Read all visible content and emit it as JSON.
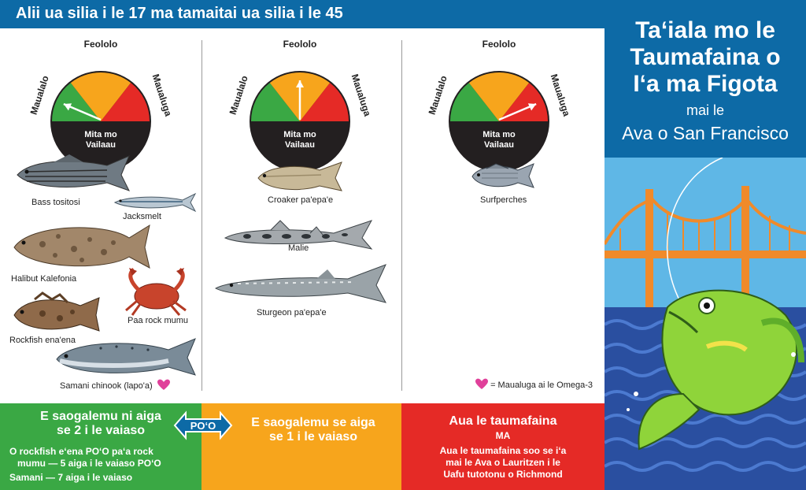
{
  "header": {
    "title": "Alii ua silia i le 17 ma tamaitai ua silia i le 45"
  },
  "panel": {
    "title_line1": "Ta‘iala mo le",
    "title_line2": "Taumafaina o",
    "title_line3": "I‘a ma Figota",
    "subtitle_small": "mai le",
    "subtitle_big": "Ava o San Francisco"
  },
  "gauge": {
    "label_left": "Maualalo",
    "label_top": "Feololo",
    "label_right": "Maualuga",
    "center_line1": "Mita mo",
    "center_line2": "Vailaau",
    "needles": [
      {
        "level": "low"
      },
      {
        "level": "medium"
      },
      {
        "level": "high"
      }
    ],
    "colors": {
      "green": "#3aa844",
      "orange": "#f7a51c",
      "red": "#e52a26",
      "black": "#231f20"
    }
  },
  "columns": [
    {
      "fish": [
        {
          "name": "Bass tositosi"
        },
        {
          "name": "Jacksmelt"
        },
        {
          "name": "Halibut Kalefonia"
        },
        {
          "name": "Paa rock mumu"
        },
        {
          "name": "Rockfish ena'ena"
        },
        {
          "name": "Samani chinook (lapo'a)"
        }
      ]
    },
    {
      "fish": [
        {
          "name": "Croaker pa'epa'e"
        },
        {
          "name": "Malie"
        },
        {
          "name": "Sturgeon pa'epa'e"
        }
      ]
    },
    {
      "fish": [
        {
          "name": "Surfperches"
        }
      ]
    }
  ],
  "legend": {
    "omega": "= Maualuga ai le Omega-3",
    "heart_color": "#e0409a"
  },
  "bands": {
    "green": {
      "line1": "E saogalemu ni aiga",
      "line2": "se 2 i le vaiaso",
      "note1a": "O rockfish e‘ena PO‘O pa‘a rock",
      "note1b": "mumu — 5 aiga i le vaiaso  PO‘O",
      "note2": "Samani — 7 aiga i le vaiaso"
    },
    "orange": {
      "line1": "E saogalemu se aiga",
      "line2": "se 1 i le vaiaso"
    },
    "red": {
      "line1": "Aua le taumafaina",
      "ma": "MA",
      "note1": "Aua le taumafaina soo se i‘a",
      "note2": "mai le Ava o Lauritzen i le",
      "note3": "Uafu tutotonu o Richmond"
    },
    "poo": "PO‘O"
  }
}
